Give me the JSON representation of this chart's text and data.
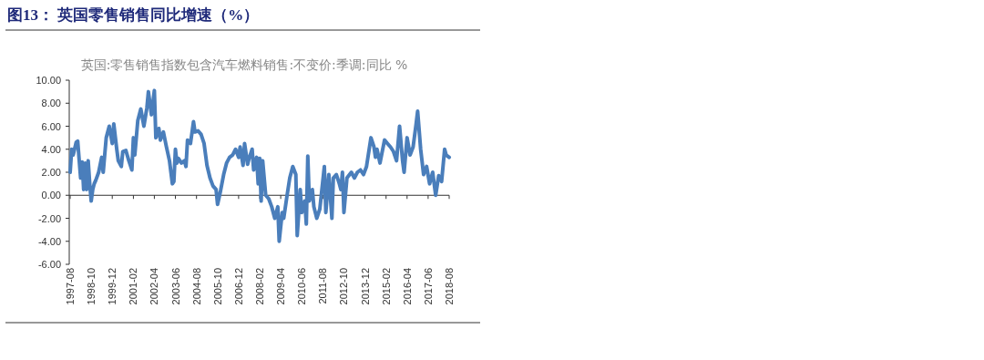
{
  "chart_data": {
    "type": "line",
    "title": "图13：  英国零售销售同比增速（%）",
    "subtitle": "英国:零售销售指数包含汽车燃料销售:不变价:季调:同比 %",
    "x": [
      "1997-08",
      "1997-09",
      "1997-10",
      "1997-12",
      "1998-01",
      "1998-02",
      "1998-03",
      "1998-04",
      "1998-05",
      "1998-06",
      "1998-07",
      "1998-08",
      "1998-09",
      "1998-10",
      "1998-11",
      "1998-12",
      "1999-01",
      "1999-03",
      "1999-05",
      "1999-06",
      "1999-07",
      "1999-08",
      "1999-10",
      "1999-12",
      "2000-01",
      "2000-03",
      "2000-04",
      "2000-06",
      "2000-07",
      "2000-09",
      "2000-11",
      "2001-01",
      "2001-02",
      "2001-03",
      "2001-05",
      "2001-07",
      "2001-09",
      "2001-11",
      "2001-12",
      "2002-02",
      "2002-04",
      "2002-05",
      "2002-07",
      "2002-08",
      "2002-10",
      "2002-12",
      "2003-02",
      "2003-04",
      "2003-05",
      "2003-06",
      "2003-07",
      "2003-08",
      "2003-10",
      "2003-12",
      "2004-01",
      "2004-02",
      "2004-04",
      "2004-06",
      "2004-07",
      "2004-09",
      "2004-11",
      "2005-01",
      "2005-03",
      "2005-05",
      "2005-07",
      "2005-09",
      "2005-10",
      "2005-12",
      "2006-02",
      "2006-04",
      "2006-06",
      "2006-08",
      "2006-10",
      "2006-12",
      "2007-01",
      "2007-03",
      "2007-04",
      "2007-06",
      "2007-07",
      "2007-09",
      "2007-10",
      "2007-12",
      "2008-01",
      "2008-02",
      "2008-03",
      "2008-04",
      "2008-06",
      "2008-08",
      "2008-10",
      "2008-12",
      "2009-02",
      "2009-03",
      "2009-05",
      "2009-06",
      "2009-08",
      "2009-10",
      "2009-12",
      "2010-02",
      "2010-03",
      "2010-05",
      "2010-06",
      "2010-08",
      "2010-09",
      "2010-10",
      "2010-11",
      "2011-01",
      "2011-02",
      "2011-04",
      "2011-06",
      "2011-07",
      "2011-09",
      "2011-10",
      "2011-12",
      "2012-02",
      "2012-03",
      "2012-05",
      "2012-07",
      "2012-08",
      "2012-09",
      "2012-10",
      "2012-12",
      "2013-03",
      "2013-05",
      "2013-07",
      "2013-09",
      "2013-11",
      "2014-01",
      "2014-04",
      "2014-06",
      "2014-07",
      "2014-08",
      "2014-10",
      "2015-01",
      "2015-03",
      "2015-05",
      "2015-07",
      "2015-09",
      "2015-11",
      "2016-01",
      "2016-02",
      "2016-04",
      "2016-06",
      "2016-08",
      "2016-10",
      "2016-11",
      "2017-01",
      "2017-03",
      "2017-05",
      "2017-07",
      "2017-09",
      "2017-11",
      "2018-01",
      "2018-03",
      "2018-05",
      "2018-06",
      "2018-08"
    ],
    "series": [
      {
        "color": "#4a7ebb",
        "values": [
          2,
          4,
          3.5,
          4.6,
          4.7,
          3,
          1.5,
          2.9,
          0.5,
          2.8,
          0.5,
          3,
          1,
          -0.5,
          0.5,
          1,
          1.3,
          2,
          3.3,
          2,
          3.5,
          5,
          6,
          4.5,
          6.2,
          4,
          3,
          2.5,
          3.8,
          3.9,
          3,
          2.2,
          5,
          3.5,
          6.5,
          7.5,
          6,
          7.6,
          9,
          7,
          9.1,
          5,
          5.8,
          4.8,
          5.5,
          4.2,
          3,
          1,
          1.2,
          4,
          2.8,
          3.2,
          2.8,
          3,
          2.5,
          4.8,
          4.5,
          6.4,
          5.5,
          5.6,
          5.3,
          4.5,
          2.6,
          1.5,
          0.8,
          0.5,
          -0.8,
          0.4,
          1.8,
          2.8,
          3.3,
          3.5,
          4,
          3.3,
          4.2,
          2.6,
          4.5,
          2.7,
          3.2,
          4,
          2.2,
          3.3,
          1,
          3.2,
          -0.5,
          3,
          0,
          -0.3,
          -1,
          -2,
          -1,
          -4,
          -1.5,
          -2,
          -0.2,
          1.5,
          2.5,
          1.8,
          -3.5,
          0.5,
          -1.5,
          -0.5,
          -2.5,
          3.4,
          -0.5,
          0.5,
          -1,
          -2,
          -1.2,
          0,
          2.5,
          -1.5,
          1.8,
          -2,
          1.5,
          1.8,
          1,
          0.5,
          2,
          -1.5,
          1.5,
          2,
          1.5,
          2,
          2.2,
          1.8,
          2.5,
          5,
          4.2,
          3.3,
          4,
          2.8,
          4.8,
          4.5,
          4.2,
          3.8,
          3,
          6,
          3,
          2,
          5,
          3.5,
          4.2,
          6.2,
          7.3,
          4,
          1.8,
          2.5,
          1,
          2,
          0,
          1.7,
          1.2,
          4,
          3.5,
          3.3
        ]
      }
    ],
    "xlim": [
      "1997-08",
      "2018-08"
    ],
    "xticks": [
      "1997-08",
      "1998-10",
      "1999-12",
      "2001-02",
      "2002-04",
      "2003-06",
      "2004-08",
      "2005-10",
      "2006-12",
      "2008-02",
      "2009-04",
      "2010-06",
      "2011-08",
      "2012-10",
      "2013-12",
      "2015-02",
      "2016-04",
      "2017-06",
      "2018-08"
    ],
    "ylim": [
      -6,
      10
    ],
    "yticks": [
      {
        "value": -6,
        "label": "-6.00"
      },
      {
        "value": -4,
        "label": "-4.00"
      },
      {
        "value": -2,
        "label": "-2.00"
      },
      {
        "value": 0,
        "label": "0.00"
      },
      {
        "value": 2,
        "label": "2.00"
      },
      {
        "value": 4,
        "label": "4.00"
      },
      {
        "value": 6,
        "label": "6.00"
      },
      {
        "value": 8,
        "label": "8.00"
      },
      {
        "value": 10,
        "label": "10.00"
      }
    ]
  }
}
